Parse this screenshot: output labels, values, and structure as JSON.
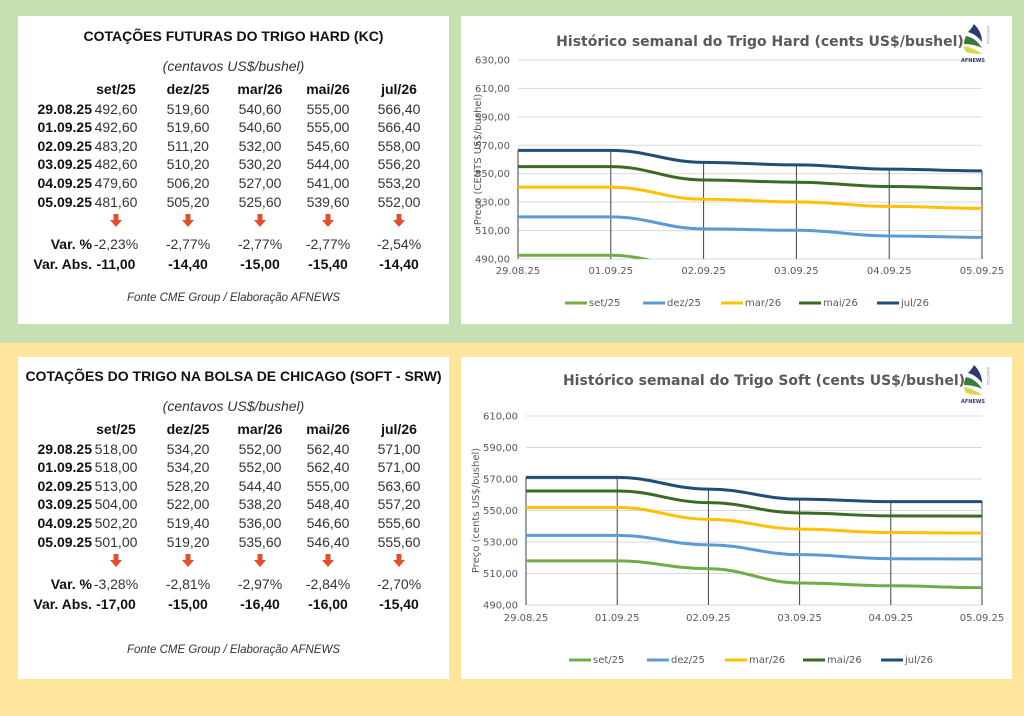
{
  "colors": {
    "top_band": "#c6e0b4",
    "bottom_band": "#fde59c",
    "down_arrow": "#e2502a",
    "series": {
      "set/25": "#70ad47",
      "dez/25": "#5b9bd5",
      "mar/26": "#ffc000",
      "mai/26": "#3a6b24",
      "jul/26": "#1f4e79"
    }
  },
  "hard_table": {
    "title": "COTAÇÕES FUTURAS DO TRIGO HARD (KC)",
    "unit": "(centavos US$/bushel)",
    "columns": [
      "set/25",
      "dez/25",
      "mar/26",
      "mai/26",
      "jul/26"
    ],
    "rows": [
      {
        "date": "29.08.25",
        "values": [
          "492,60",
          "519,60",
          "540,60",
          "555,00",
          "566,40"
        ]
      },
      {
        "date": "01.09.25",
        "values": [
          "492,60",
          "519,60",
          "540,60",
          "555,00",
          "566,40"
        ]
      },
      {
        "date": "02.09.25",
        "values": [
          "483,20",
          "511,20",
          "532,00",
          "545,60",
          "558,00"
        ]
      },
      {
        "date": "03.09.25",
        "values": [
          "482,60",
          "510,20",
          "530,20",
          "544,00",
          "556,20"
        ]
      },
      {
        "date": "04.09.25",
        "values": [
          "479,60",
          "506,20",
          "527,00",
          "541,00",
          "553,20"
        ]
      },
      {
        "date": "05.09.25",
        "values": [
          "481,60",
          "505,20",
          "525,60",
          "539,60",
          "552,00"
        ]
      }
    ],
    "trend_icons": [
      "down-arrow",
      "down-arrow",
      "down-arrow",
      "down-arrow",
      "down-arrow"
    ],
    "var_pct_label": "Var. %",
    "var_pct": [
      "-2,23%",
      "-2,77%",
      "-2,77%",
      "-2,77%",
      "-2,54%"
    ],
    "var_abs_label": "Var. Abs.",
    "var_abs": [
      "-11,00",
      "-14,40",
      "-15,00",
      "-15,40",
      "-14,40"
    ],
    "source": "Fonte CME Group / Elaboração AFNEWS"
  },
  "soft_table": {
    "title": "COTAÇÕES DO TRIGO NA BOLSA DE CHICAGO (SOFT - SRW)",
    "unit": "(centavos US$/bushel)",
    "columns": [
      "set/25",
      "dez/25",
      "mar/26",
      "mai/26",
      "jul/26"
    ],
    "rows": [
      {
        "date": "29.08.25",
        "values": [
          "518,00",
          "534,20",
          "552,00",
          "562,40",
          "571,00"
        ]
      },
      {
        "date": "01.09.25",
        "values": [
          "518,00",
          "534,20",
          "552,00",
          "562,40",
          "571,00"
        ]
      },
      {
        "date": "02.09.25",
        "values": [
          "513,00",
          "528,20",
          "544,40",
          "555,00",
          "563,60"
        ]
      },
      {
        "date": "03.09.25",
        "values": [
          "504,00",
          "522,00",
          "538,20",
          "548,40",
          "557,20"
        ]
      },
      {
        "date": "04.09.25",
        "values": [
          "502,20",
          "519,40",
          "536,00",
          "546,60",
          "555,60"
        ]
      },
      {
        "date": "05.09.25",
        "values": [
          "501,00",
          "519,20",
          "535,60",
          "546,40",
          "555,60"
        ]
      }
    ],
    "trend_icons": [
      "down-arrow",
      "down-arrow",
      "down-arrow",
      "down-arrow",
      "down-arrow"
    ],
    "var_pct_label": "Var. %",
    "var_pct": [
      "-3,28%",
      "-2,81%",
      "-2,97%",
      "-2,84%",
      "-2,70%"
    ],
    "var_abs_label": "Var. Abs.",
    "var_abs": [
      "-17,00",
      "-15,00",
      "-16,40",
      "-16,00",
      "-15,40"
    ],
    "source": "Fonte CME Group / Elaboração AFNEWS"
  },
  "logo": {
    "text": "AFNEWS",
    "side_text": "AGRÍCOLA"
  },
  "chart_data": [
    {
      "type": "line",
      "title": "Histórico semanal do Trigo Hard (cents US$/bushel)",
      "xlabel": "",
      "ylabel": "Preço (CENTS US$/bushel)",
      "x": [
        "29.08.25",
        "01.09.25",
        "02.09.25",
        "03.09.25",
        "04.09.25",
        "05.09.25"
      ],
      "ylim": [
        490,
        630
      ],
      "yticks": [
        490,
        510,
        530,
        550,
        570,
        590,
        610,
        630
      ],
      "ytick_labels": [
        "490,00",
        "510,00",
        "530,00",
        "550,00",
        "570,00",
        "590,00",
        "610,00",
        "630,00"
      ],
      "grid": true,
      "drop_lines": true,
      "legend": "bottom",
      "series": [
        {
          "name": "set/25",
          "values": [
            492.6,
            492.6,
            483.2,
            482.6,
            479.6,
            481.6
          ]
        },
        {
          "name": "dez/25",
          "values": [
            519.6,
            519.6,
            511.2,
            510.2,
            506.2,
            505.2
          ]
        },
        {
          "name": "mar/26",
          "values": [
            540.6,
            540.6,
            532.0,
            530.2,
            527.0,
            525.6
          ]
        },
        {
          "name": "mai/26",
          "values": [
            555.0,
            555.0,
            545.6,
            544.0,
            541.0,
            539.6
          ]
        },
        {
          "name": "jul/26",
          "values": [
            566.4,
            566.4,
            558.0,
            556.2,
            553.2,
            552.0
          ]
        }
      ]
    },
    {
      "type": "line",
      "title": "Histórico semanal do Trigo Soft (cents US$/bushel)",
      "xlabel": "",
      "ylabel": "Preço (cents US$/bushel)",
      "x": [
        "29.08.25",
        "01.09.25",
        "02.09.25",
        "03.09.25",
        "04.09.25",
        "05.09.25"
      ],
      "ylim": [
        490,
        610
      ],
      "yticks": [
        490,
        510,
        530,
        550,
        570,
        590,
        610
      ],
      "ytick_labels": [
        "490,00",
        "510,00",
        "530,00",
        "550,00",
        "570,00",
        "590,00",
        "610,00"
      ],
      "grid": true,
      "drop_lines": true,
      "legend": "bottom",
      "series": [
        {
          "name": "set/25",
          "values": [
            518.0,
            518.0,
            513.0,
            504.0,
            502.2,
            501.0
          ]
        },
        {
          "name": "dez/25",
          "values": [
            534.2,
            534.2,
            528.2,
            522.0,
            519.4,
            519.2
          ]
        },
        {
          "name": "mar/26",
          "values": [
            552.0,
            552.0,
            544.4,
            538.2,
            536.0,
            535.6
          ]
        },
        {
          "name": "mai/26",
          "values": [
            562.4,
            562.4,
            555.0,
            548.4,
            546.6,
            546.4
          ]
        },
        {
          "name": "jul/26",
          "values": [
            571.0,
            571.0,
            563.6,
            557.2,
            555.6,
            555.6
          ]
        }
      ]
    }
  ]
}
